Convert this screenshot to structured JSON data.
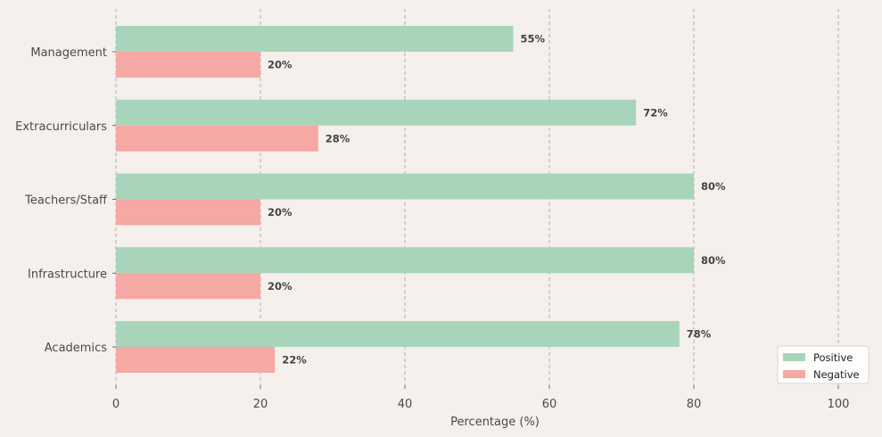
{
  "chart_data": {
    "type": "bar",
    "orientation": "horizontal",
    "categories": [
      "Management",
      "Extracurriculars",
      "Teachers/Staff",
      "Infrastructure",
      "Academics"
    ],
    "series": [
      {
        "name": "Positive",
        "values": [
          55,
          72,
          80,
          80,
          78
        ],
        "color": "#a8d5ba"
      },
      {
        "name": "Negative",
        "values": [
          20,
          28,
          20,
          20,
          22
        ],
        "color": "#f5a8a4"
      }
    ],
    "value_suffix": "%",
    "xlabel": "Percentage (%)",
    "ylabel": "",
    "xlim": [
      0,
      100
    ],
    "x_ticks": [
      "0",
      "20",
      "40",
      "60",
      "80",
      "100"
    ],
    "grid": "x-dashed",
    "legend_position": "bottom-right"
  },
  "colors": {
    "background": "#f5f0ec",
    "grid": "#a0a0a0"
  }
}
